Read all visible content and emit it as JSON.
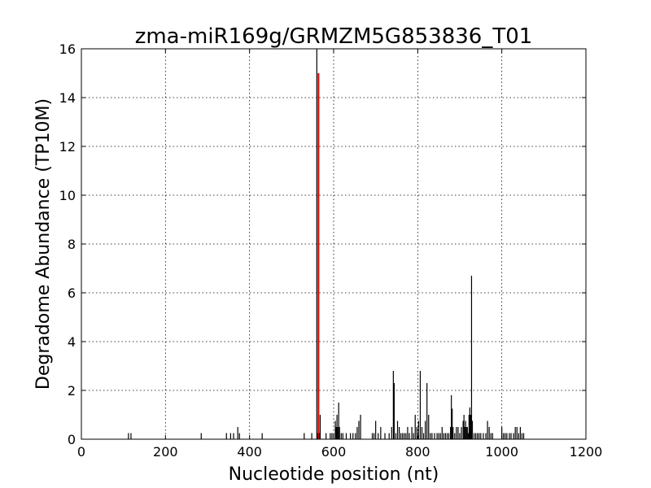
{
  "chart_data": {
    "type": "bar",
    "title": "zma-miR169g/GRMZM5G853836_T01",
    "xlabel": "Nucleotide position (nt)",
    "ylabel": "Degradome Abundance (TP10M)",
    "xlim": [
      0,
      1200
    ],
    "ylim": [
      0,
      16
    ],
    "xticks": [
      0,
      200,
      400,
      600,
      800,
      1000,
      1200
    ],
    "yticks": [
      0,
      2,
      4,
      6,
      8,
      10,
      12,
      14,
      16
    ],
    "grid": true,
    "bar_color": "#000000",
    "highlight_color": "#cc0000",
    "highlight": {
      "x": 564,
      "value": 15.0
    },
    "series": [
      {
        "x": [
          112,
          118,
          285,
          345,
          355,
          362,
          372,
          376,
          430,
          530,
          548,
          560,
          562,
          566,
          568,
          582,
          592,
          596,
          600,
          604,
          606,
          608,
          610,
          612,
          614,
          618,
          622,
          630,
          640,
          646,
          652,
          656,
          660,
          664,
          692,
          696,
          700,
          706,
          712,
          722,
          732,
          738,
          742,
          744,
          748,
          752,
          756,
          760,
          764,
          768,
          772,
          776,
          780,
          786,
          790,
          794,
          798,
          802,
          806,
          810,
          814,
          818,
          822,
          826,
          830,
          834,
          840,
          846,
          850,
          854,
          858,
          862,
          866,
          870,
          874,
          878,
          880,
          882,
          884,
          888,
          892,
          896,
          900,
          904,
          908,
          910,
          912,
          914,
          916,
          918,
          920,
          922,
          924,
          926,
          928,
          930,
          934,
          938,
          942,
          946,
          950,
          956,
          962,
          966,
          970,
          974,
          978,
          1000,
          1004,
          1008,
          1012,
          1018,
          1022,
          1028,
          1032,
          1036,
          1040,
          1044,
          1048,
          1052
        ],
        "values": [
          0.25,
          0.25,
          0.25,
          0.25,
          0.25,
          0.25,
          0.5,
          0.25,
          0.25,
          0.25,
          0.25,
          16.0,
          0.25,
          0.25,
          1.0,
          0.25,
          0.25,
          0.25,
          0.25,
          0.75,
          0.5,
          1.0,
          0.5,
          1.5,
          0.5,
          0.25,
          0.25,
          0.25,
          0.25,
          0.25,
          0.25,
          0.5,
          0.75,
          1.0,
          0.25,
          0.25,
          0.75,
          0.25,
          0.5,
          0.25,
          0.25,
          0.5,
          2.8,
          2.3,
          0.25,
          0.75,
          0.5,
          0.25,
          0.25,
          0.25,
          0.25,
          0.5,
          0.25,
          0.5,
          0.25,
          1.0,
          0.5,
          0.75,
          2.8,
          0.5,
          0.25,
          0.75,
          2.3,
          1.0,
          0.25,
          0.25,
          0.25,
          0.25,
          0.25,
          0.25,
          0.5,
          0.25,
          0.25,
          0.25,
          0.25,
          0.5,
          1.8,
          1.25,
          0.5,
          0.25,
          0.5,
          0.5,
          0.25,
          0.5,
          0.75,
          1.0,
          0.5,
          0.75,
          0.5,
          0.5,
          0.25,
          1.0,
          1.3,
          1.0,
          6.7,
          0.75,
          0.25,
          0.25,
          0.25,
          0.25,
          0.25,
          0.25,
          0.25,
          0.75,
          0.5,
          0.25,
          0.25,
          0.5,
          0.25,
          0.25,
          0.25,
          0.25,
          0.25,
          0.25,
          0.5,
          0.5,
          0.25,
          0.5,
          0.25,
          0.25
        ]
      }
    ]
  }
}
